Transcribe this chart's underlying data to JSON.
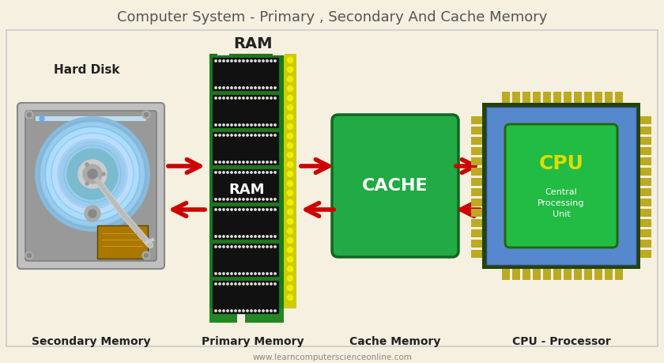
{
  "title": "Computer System - Primary , Secondary And Cache Memory",
  "title_fontsize": 13,
  "title_color": "#555555",
  "bg_color": "#f5f0e0",
  "website": "www.learncomputerscienceonline.com",
  "labels": {
    "hard_disk": "Hard Disk",
    "ram_top": "RAM",
    "ram_mid": "RAM",
    "cache": "CACHE",
    "cpu_main": "CPU",
    "cpu_sub": "Central\nProcessing\nUnit",
    "secondary": "Secondary Memory",
    "primary": "Primary Memory",
    "cache_mem": "Cache Memory",
    "cpu_proc": "CPU - Processor"
  },
  "colors": {
    "ram_green": "#1a7a1a",
    "ram_black_chip": "#111111",
    "ram_yellow": "#cccc00",
    "ram_dots": "#ffffff",
    "cache_green": "#22aa44",
    "cache_dark": "#116622",
    "cpu_blue": "#5588cc",
    "cpu_inner_green": "#22bb44",
    "cpu_gold": "#bbaa00",
    "cpu_dark_border": "#226600",
    "arrow_red": "#cc0000",
    "label_dark": "#222222",
    "hdd_silver": "#aaaaaa",
    "hdd_dark": "#666666",
    "hdd_disk_blue": "#88ccee",
    "hdd_disk_light": "#aaddff"
  }
}
